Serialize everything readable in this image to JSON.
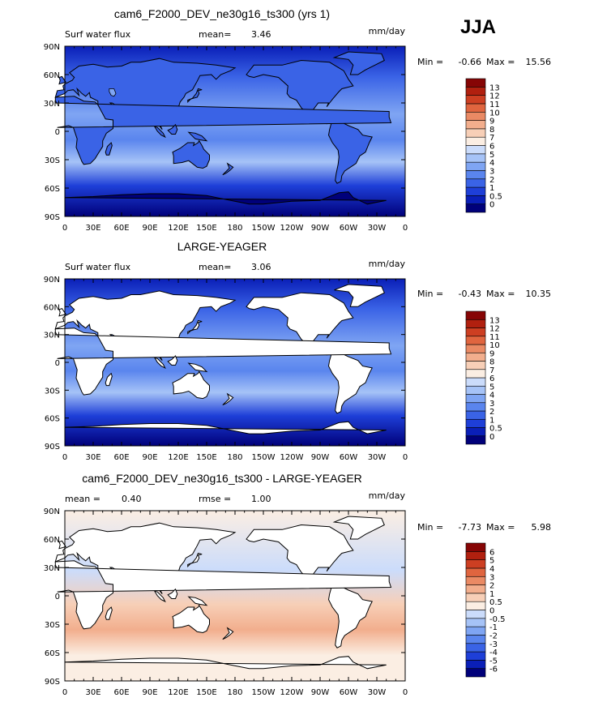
{
  "season": "JJA",
  "lon_labels": [
    "0",
    "30E",
    "60E",
    "90E",
    "120E",
    "150E",
    "180",
    "150W",
    "120W",
    "90W",
    "60W",
    "30W",
    "0"
  ],
  "lat_labels": [
    "90N",
    "60N",
    "30N",
    "0",
    "30S",
    "60S",
    "90S"
  ],
  "chart_data": [
    {
      "type": "heatmap",
      "title": "cam6_F2000_DEV_ne30g16_ts300 (yrs 1)",
      "variable": "Surf water flux",
      "units": "mm/day",
      "stat1_label": "mean=",
      "stat1_value": "3.46",
      "stat2_label": "",
      "stat2_value": "",
      "min_label": "Min =",
      "min_value": "-0.66",
      "max_label": "Max =",
      "max_value": "15.56",
      "colorbar": [
        "0",
        "0.5",
        "1",
        "2",
        "3",
        "4",
        "5",
        "6",
        "7",
        "8",
        "9",
        "10",
        "11",
        "12",
        "13"
      ],
      "colors": [
        "#00007a",
        "#0a1fb8",
        "#1e3fd8",
        "#3a63e6",
        "#5a85ee",
        "#7fa5f3",
        "#a6c3f7",
        "#cbdcfb",
        "#fbeee3",
        "#f7cfb7",
        "#f2ae8d",
        "#ea8a64",
        "#e0653f",
        "#cd3f22",
        "#b1200f",
        "#860505"
      ]
    },
    {
      "type": "heatmap",
      "title": "LARGE-YEAGER",
      "variable": "Surf water flux",
      "units": "mm/day",
      "stat1_label": "mean=",
      "stat1_value": "3.06",
      "stat2_label": "",
      "stat2_value": "",
      "min_label": "Min =",
      "min_value": "-0.43",
      "max_label": "Max =",
      "max_value": "10.35",
      "colorbar": [
        "0",
        "0.5",
        "1",
        "2",
        "3",
        "4",
        "5",
        "6",
        "7",
        "8",
        "9",
        "10",
        "11",
        "12",
        "13"
      ],
      "colors": [
        "#00007a",
        "#0a1fb8",
        "#1e3fd8",
        "#3a63e6",
        "#5a85ee",
        "#7fa5f3",
        "#a6c3f7",
        "#cbdcfb",
        "#fbeee3",
        "#f7cfb7",
        "#f2ae8d",
        "#ea8a64",
        "#e0653f",
        "#cd3f22",
        "#b1200f",
        "#860505"
      ]
    },
    {
      "type": "heatmap",
      "title": "cam6_F2000_DEV_ne30g16_ts300 - LARGE-YEAGER",
      "variable": "",
      "units": "mm/day",
      "stat1_label": "mean =",
      "stat1_value": "0.40",
      "stat2_label": "rmse =",
      "stat2_value": "1.00",
      "min_label": "Min =",
      "min_value": "-7.73",
      "max_label": "Max =",
      "max_value": "5.98",
      "colorbar": [
        "-6",
        "-5",
        "-4",
        "-3",
        "-2",
        "-1",
        "-0.5",
        "0",
        "0.5",
        "1",
        "2",
        "3",
        "4",
        "5",
        "6"
      ],
      "colors": [
        "#00007a",
        "#0a1fb8",
        "#1e3fd8",
        "#3a63e6",
        "#5a85ee",
        "#7fa5f3",
        "#a6c3f7",
        "#cbdcfb",
        "#fbeee3",
        "#f7cfb7",
        "#f2ae8d",
        "#ea8a64",
        "#e0653f",
        "#cd3f22",
        "#b1200f",
        "#860505"
      ]
    }
  ]
}
